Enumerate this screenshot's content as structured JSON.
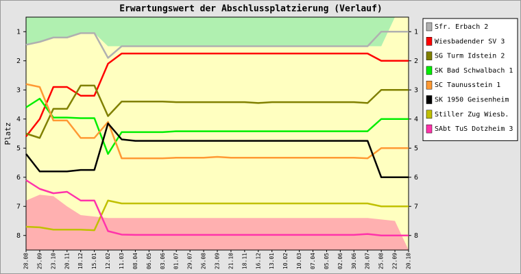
{
  "chart_data": {
    "type": "line",
    "title": "Erwartungswert der Abschlussplatzierung (Verlauf)",
    "y_label": "Platz",
    "categories": [
      "28.08",
      "25.09",
      "23.10",
      "20.11",
      "18.12",
      "15.01",
      "12.02",
      "11.03",
      "08.04",
      "06.05",
      "03.06",
      "01.07",
      "29.07",
      "26.08",
      "23.09",
      "21.10",
      "18.11",
      "16.12",
      "13.01",
      "10.02",
      "10.03",
      "07.04",
      "05.05",
      "02.06",
      "30.06",
      "28.07",
      "25.08",
      "22.09",
      "20.10"
    ],
    "ylim": [
      0.5,
      8.5
    ],
    "y_inverted": true,
    "yticks": [
      1,
      2,
      3,
      4,
      5,
      6,
      7,
      8
    ],
    "plot_background": "#ffffc0",
    "zones": [
      {
        "color": "#b0f0b0",
        "to": "top",
        "values": [
          1.45,
          1.35,
          1.2,
          1.2,
          1.05,
          1.05,
          1.5,
          1.5,
          1.5,
          1.5,
          1.5,
          1.5,
          1.5,
          1.5,
          1.5,
          1.5,
          1.5,
          1.5,
          1.5,
          1.5,
          1.5,
          1.5,
          1.5,
          1.5,
          1.5,
          1.5,
          1.5,
          0.5,
          0.5
        ]
      },
      {
        "color": "#ffb0b0",
        "to": "bottom",
        "values": [
          6.8,
          6.6,
          6.65,
          7.0,
          7.3,
          7.35,
          7.4,
          7.4,
          7.4,
          7.4,
          7.4,
          7.4,
          7.4,
          7.4,
          7.4,
          7.4,
          7.4,
          7.4,
          7.4,
          7.4,
          7.4,
          7.4,
          7.4,
          7.4,
          7.4,
          7.4,
          7.45,
          7.5,
          8.5
        ]
      }
    ],
    "legend": "right",
    "series": [
      {
        "name": "Sfr. Erbach 2",
        "color": "#b0b0b0",
        "values": [
          1.45,
          1.35,
          1.2,
          1.2,
          1.05,
          1.05,
          1.9,
          1.5,
          1.5,
          1.5,
          1.5,
          1.5,
          1.5,
          1.5,
          1.5,
          1.5,
          1.5,
          1.5,
          1.5,
          1.5,
          1.5,
          1.5,
          1.5,
          1.5,
          1.5,
          1.5,
          1.0,
          1.0,
          1.0
        ]
      },
      {
        "name": "Wiesbadender SV 3",
        "color": "#ff0000",
        "values": [
          4.6,
          4.0,
          2.9,
          2.9,
          3.2,
          3.2,
          2.1,
          1.75,
          1.75,
          1.75,
          1.75,
          1.75,
          1.75,
          1.75,
          1.75,
          1.75,
          1.75,
          1.75,
          1.75,
          1.75,
          1.75,
          1.75,
          1.75,
          1.75,
          1.75,
          1.75,
          2.0,
          2.0,
          2.0
        ]
      },
      {
        "name": "SG Turm Idstein 2",
        "color": "#808000",
        "values": [
          4.5,
          4.65,
          3.65,
          3.65,
          2.85,
          2.85,
          3.9,
          3.4,
          3.4,
          3.4,
          3.4,
          3.42,
          3.42,
          3.42,
          3.42,
          3.42,
          3.42,
          3.45,
          3.42,
          3.42,
          3.42,
          3.42,
          3.42,
          3.42,
          3.42,
          3.45,
          3.0,
          3.0,
          3.0
        ]
      },
      {
        "name": "SK Bad Schwalbach 1",
        "color": "#00ee00",
        "values": [
          3.6,
          3.3,
          3.95,
          3.95,
          3.97,
          3.97,
          5.2,
          4.45,
          4.45,
          4.45,
          4.45,
          4.42,
          4.42,
          4.42,
          4.42,
          4.42,
          4.42,
          4.42,
          4.42,
          4.42,
          4.42,
          4.42,
          4.42,
          4.42,
          4.42,
          4.42,
          4.0,
          4.0,
          4.0
        ]
      },
      {
        "name": "SC Taunusstein 1",
        "color": "#ff9933",
        "values": [
          2.8,
          2.9,
          4.05,
          4.05,
          4.65,
          4.65,
          4.1,
          5.35,
          5.35,
          5.35,
          5.35,
          5.33,
          5.33,
          5.33,
          5.3,
          5.33,
          5.33,
          5.33,
          5.33,
          5.33,
          5.33,
          5.33,
          5.33,
          5.33,
          5.33,
          5.35,
          5.0,
          5.0,
          5.0
        ]
      },
      {
        "name": "SK 1950 Geisenheim",
        "color": "#000000",
        "values": [
          5.2,
          5.8,
          5.8,
          5.8,
          5.75,
          5.75,
          4.15,
          4.7,
          4.75,
          4.75,
          4.75,
          4.75,
          4.75,
          4.75,
          4.75,
          4.75,
          4.75,
          4.75,
          4.75,
          4.75,
          4.75,
          4.75,
          4.75,
          4.75,
          4.75,
          4.75,
          6.0,
          6.0,
          6.0
        ]
      },
      {
        "name": "Stiller Zug Wiesb.",
        "color": "#c0c000",
        "values": [
          7.7,
          7.72,
          7.8,
          7.8,
          7.8,
          7.82,
          6.8,
          6.9,
          6.9,
          6.9,
          6.9,
          6.9,
          6.9,
          6.9,
          6.9,
          6.9,
          6.9,
          6.9,
          6.9,
          6.9,
          6.9,
          6.9,
          6.9,
          6.9,
          6.9,
          6.9,
          7.0,
          7.0,
          7.0
        ]
      },
      {
        "name": "SAbt TuS Dotzheim 3",
        "color": "#ff33aa",
        "values": [
          6.1,
          6.4,
          6.55,
          6.5,
          6.8,
          6.8,
          7.85,
          7.97,
          7.98,
          7.98,
          7.98,
          7.98,
          7.98,
          7.98,
          7.98,
          7.98,
          7.98,
          7.98,
          7.98,
          7.98,
          7.98,
          7.98,
          7.98,
          7.98,
          7.98,
          7.95,
          8.0,
          8.0,
          8.0
        ]
      }
    ]
  }
}
